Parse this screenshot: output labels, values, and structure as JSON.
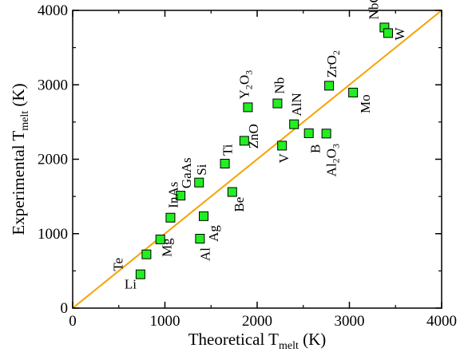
{
  "chart_data": {
    "type": "scatter",
    "xlabel": {
      "main": "Theoretical T",
      "sub": "melt",
      "unit": " (K)"
    },
    "ylabel": {
      "main": "Experimental T",
      "sub": "melt",
      "unit": " (K)"
    },
    "xlim": [
      0,
      4000
    ],
    "ylim": [
      0,
      4000
    ],
    "xticks": [
      "0",
      "1000",
      "2000",
      "3000",
      "4000"
    ],
    "yticks": [
      "0",
      "1000",
      "2000",
      "3000",
      "4000"
    ],
    "reference_line": {
      "type": "y=x",
      "color": "#f5a300"
    },
    "marker_color": "#22ee22",
    "points": [
      {
        "label": "Li",
        "x": 735,
        "y": 454
      },
      {
        "label": "Te",
        "x": 800,
        "y": 722
      },
      {
        "label": "Mg",
        "x": 950,
        "y": 923
      },
      {
        "label": "InAs",
        "x": 1060,
        "y": 1215
      },
      {
        "label": "GaAs",
        "x": 1170,
        "y": 1511
      },
      {
        "label": "Al",
        "x": 1380,
        "y": 933
      },
      {
        "label": "Ag",
        "x": 1420,
        "y": 1235
      },
      {
        "label": "Si",
        "x": 1370,
        "y": 1687
      },
      {
        "label": "Be",
        "x": 1730,
        "y": 1560
      },
      {
        "label": "Ti",
        "x": 1650,
        "y": 1941
      },
      {
        "label": "ZnO",
        "x": 1860,
        "y": 2248
      },
      {
        "label": "Y2O3",
        "x": 1900,
        "y": 2698
      },
      {
        "label": "V",
        "x": 2270,
        "y": 2183
      },
      {
        "label": "AlN",
        "x": 2400,
        "y": 2470
      },
      {
        "label": "Nb",
        "x": 2220,
        "y": 2750
      },
      {
        "label": "B",
        "x": 2560,
        "y": 2349
      },
      {
        "label": "Al2O3",
        "x": 2750,
        "y": 2345
      },
      {
        "label": "ZrO2",
        "x": 2780,
        "y": 2988
      },
      {
        "label": "Mo",
        "x": 3040,
        "y": 2896
      },
      {
        "label": "NbC",
        "x": 3380,
        "y": 3770
      },
      {
        "label": "W",
        "x": 3420,
        "y": 3695
      }
    ]
  }
}
